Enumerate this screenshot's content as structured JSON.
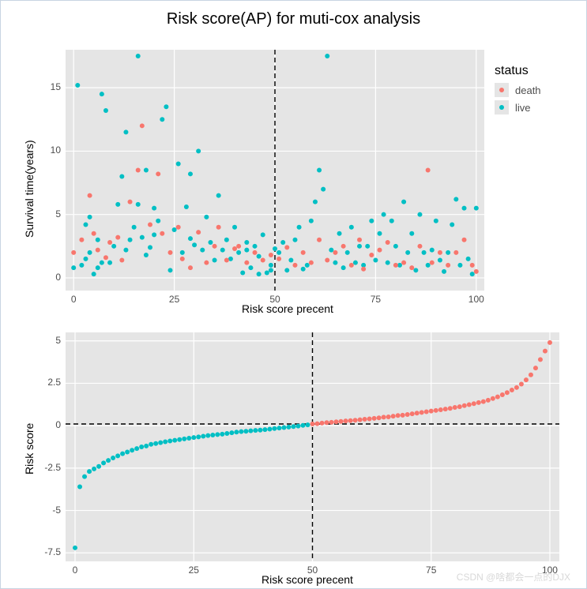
{
  "title": "Risk score(AP) for muti-cox analysis",
  "watermark": "CSDN @啥都会一点的DJX",
  "colors": {
    "death": "#f8766d",
    "live": "#00bfc4",
    "panel_bg": "#e5e5e5",
    "grid_major": "#ffffff",
    "axis_text": "#4d4d4d",
    "vline": "#000000"
  },
  "legend": {
    "title": "status",
    "items": [
      {
        "key": "death",
        "label": "death",
        "color": "#f8766d"
      },
      {
        "key": "live",
        "label": "live",
        "color": "#00bfc4"
      }
    ]
  },
  "chart_top": {
    "type": "scatter",
    "xlabel": "Risk score precent",
    "ylabel": "Survival time(years)",
    "xlim": [
      -2,
      102
    ],
    "ylim": [
      -1,
      18
    ],
    "xticks": [
      0,
      25,
      50,
      75,
      100
    ],
    "yticks": [
      0,
      5,
      10,
      15
    ],
    "vline_x": 50,
    "point_radius": 3,
    "label_fontsize": 14,
    "tick_fontsize": 12,
    "points_live": [
      [
        0,
        0.8
      ],
      [
        1,
        15.2
      ],
      [
        2,
        1.0
      ],
      [
        3,
        4.2
      ],
      [
        3,
        1.5
      ],
      [
        4,
        2.0
      ],
      [
        4,
        4.8
      ],
      [
        5,
        0.3
      ],
      [
        6,
        0.8
      ],
      [
        6,
        3.0
      ],
      [
        7,
        14.5
      ],
      [
        7,
        1.2
      ],
      [
        8,
        13.2
      ],
      [
        9,
        1.2
      ],
      [
        10,
        2.5
      ],
      [
        11,
        5.8
      ],
      [
        12,
        8.0
      ],
      [
        13,
        11.5
      ],
      [
        13,
        2.2
      ],
      [
        14,
        3.0
      ],
      [
        15,
        4.0
      ],
      [
        16,
        17.5
      ],
      [
        16,
        5.8
      ],
      [
        17,
        3.2
      ],
      [
        18,
        8.5
      ],
      [
        18,
        1.8
      ],
      [
        19,
        2.4
      ],
      [
        20,
        5.5
      ],
      [
        20,
        3.4
      ],
      [
        21,
        4.5
      ],
      [
        22,
        12.5
      ],
      [
        23,
        13.5
      ],
      [
        24,
        0.6
      ],
      [
        25,
        3.8
      ],
      [
        26,
        9.0
      ],
      [
        27,
        2.0
      ],
      [
        28,
        5.6
      ],
      [
        29,
        8.2
      ],
      [
        29,
        3.1
      ],
      [
        30,
        2.6
      ],
      [
        31,
        10.0
      ],
      [
        32,
        2.2
      ],
      [
        33,
        4.8
      ],
      [
        34,
        2.8
      ],
      [
        35,
        1.4
      ],
      [
        36,
        6.5
      ],
      [
        37,
        2.2
      ],
      [
        38,
        3.0
      ],
      [
        39,
        1.5
      ],
      [
        40,
        4.0
      ],
      [
        41,
        2.0
      ],
      [
        42,
        0.4
      ],
      [
        43,
        2.8
      ],
      [
        43,
        2.2
      ],
      [
        44,
        0.8
      ],
      [
        45,
        2.5
      ],
      [
        46,
        0.3
      ],
      [
        46,
        1.7
      ],
      [
        47,
        3.4
      ],
      [
        48,
        0.4
      ],
      [
        49,
        1.0
      ],
      [
        49,
        0.6
      ],
      [
        50,
        2.3
      ],
      [
        51,
        2.0
      ],
      [
        52,
        2.8
      ],
      [
        53,
        0.6
      ],
      [
        54,
        1.4
      ],
      [
        55,
        3.0
      ],
      [
        56,
        4.0
      ],
      [
        57,
        0.7
      ],
      [
        58,
        1.0
      ],
      [
        59,
        4.5
      ],
      [
        60,
        6.0
      ],
      [
        61,
        8.5
      ],
      [
        62,
        7.0
      ],
      [
        63,
        17.5
      ],
      [
        64,
        2.2
      ],
      [
        65,
        1.2
      ],
      [
        66,
        3.5
      ],
      [
        67,
        0.8
      ],
      [
        68,
        2.0
      ],
      [
        69,
        4.0
      ],
      [
        70,
        1.2
      ],
      [
        71,
        2.5
      ],
      [
        72,
        1.0
      ],
      [
        73,
        2.5
      ],
      [
        74,
        4.5
      ],
      [
        75,
        1.4
      ],
      [
        76,
        3.5
      ],
      [
        77,
        5.0
      ],
      [
        78,
        1.2
      ],
      [
        79,
        4.5
      ],
      [
        80,
        2.5
      ],
      [
        81,
        1.0
      ],
      [
        82,
        6.0
      ],
      [
        83,
        2.0
      ],
      [
        84,
        3.5
      ],
      [
        85,
        0.6
      ],
      [
        86,
        5.0
      ],
      [
        87,
        2.0
      ],
      [
        88,
        1.0
      ],
      [
        89,
        2.2
      ],
      [
        90,
        4.5
      ],
      [
        91,
        1.4
      ],
      [
        92,
        0.5
      ],
      [
        93,
        2.0
      ],
      [
        94,
        4.2
      ],
      [
        95,
        6.2
      ],
      [
        96,
        1.0
      ],
      [
        97,
        5.5
      ],
      [
        98,
        1.5
      ],
      [
        99,
        0.3
      ],
      [
        100,
        5.5
      ]
    ],
    "points_death": [
      [
        0,
        2.0
      ],
      [
        2,
        3.0
      ],
      [
        4,
        6.5
      ],
      [
        5,
        3.5
      ],
      [
        6,
        2.2
      ],
      [
        8,
        1.6
      ],
      [
        9,
        2.8
      ],
      [
        11,
        3.2
      ],
      [
        12,
        1.4
      ],
      [
        14,
        6.0
      ],
      [
        16,
        8.5
      ],
      [
        17,
        12.0
      ],
      [
        19,
        4.2
      ],
      [
        21,
        8.2
      ],
      [
        22,
        3.5
      ],
      [
        24,
        2.0
      ],
      [
        26,
        4.0
      ],
      [
        27,
        1.5
      ],
      [
        29,
        0.8
      ],
      [
        31,
        3.6
      ],
      [
        33,
        1.2
      ],
      [
        35,
        2.5
      ],
      [
        36,
        4.0
      ],
      [
        38,
        1.4
      ],
      [
        40,
        2.3
      ],
      [
        41,
        2.5
      ],
      [
        43,
        1.2
      ],
      [
        45,
        2.0
      ],
      [
        47,
        1.4
      ],
      [
        49,
        1.8
      ],
      [
        51,
        1.5
      ],
      [
        53,
        2.4
      ],
      [
        55,
        1.0
      ],
      [
        57,
        2.0
      ],
      [
        59,
        1.2
      ],
      [
        61,
        3.0
      ],
      [
        63,
        1.4
      ],
      [
        65,
        2.0
      ],
      [
        67,
        2.5
      ],
      [
        69,
        1.0
      ],
      [
        71,
        3.0
      ],
      [
        72,
        0.7
      ],
      [
        74,
        1.8
      ],
      [
        76,
        2.2
      ],
      [
        78,
        2.8
      ],
      [
        80,
        1.0
      ],
      [
        82,
        1.2
      ],
      [
        84,
        0.8
      ],
      [
        86,
        2.5
      ],
      [
        88,
        8.5
      ],
      [
        89,
        1.2
      ],
      [
        91,
        2.0
      ],
      [
        93,
        1.0
      ],
      [
        95,
        2.0
      ],
      [
        97,
        3.0
      ],
      [
        99,
        1.0
      ],
      [
        100,
        0.5
      ]
    ]
  },
  "chart_bot": {
    "type": "scatter",
    "xlabel": "Risk score precent",
    "ylabel": "Risk score",
    "xlim": [
      -2,
      102
    ],
    "ylim": [
      -8,
      5.5
    ],
    "xticks": [
      0,
      25,
      50,
      75,
      100
    ],
    "yticks": [
      -7.5,
      -5.0,
      -2.5,
      0.0,
      2.5,
      5.0
    ],
    "vline_x": 50,
    "hline_y": 0.1,
    "point_radius": 3,
    "label_fontsize": 14,
    "tick_fontsize": 12,
    "risk_x": [
      0,
      1,
      2,
      3,
      4,
      5,
      6,
      7,
      8,
      9,
      10,
      11,
      12,
      13,
      14,
      15,
      16,
      17,
      18,
      19,
      20,
      21,
      22,
      23,
      24,
      25,
      26,
      27,
      28,
      29,
      30,
      31,
      32,
      33,
      34,
      35,
      36,
      37,
      38,
      39,
      40,
      41,
      42,
      43,
      44,
      45,
      46,
      47,
      48,
      49,
      50,
      51,
      52,
      53,
      54,
      55,
      56,
      57,
      58,
      59,
      60,
      61,
      62,
      63,
      64,
      65,
      66,
      67,
      68,
      69,
      70,
      71,
      72,
      73,
      74,
      75,
      76,
      77,
      78,
      79,
      80,
      81,
      82,
      83,
      84,
      85,
      86,
      87,
      88,
      89,
      90,
      91,
      92,
      93,
      94,
      95,
      96,
      97,
      98,
      99,
      100
    ],
    "risk_y": [
      -7.2,
      -3.6,
      -3.0,
      -2.7,
      -2.55,
      -2.4,
      -2.2,
      -2.05,
      -1.9,
      -1.78,
      -1.65,
      -1.55,
      -1.45,
      -1.35,
      -1.25,
      -1.2,
      -1.1,
      -1.05,
      -1.0,
      -0.95,
      -0.9,
      -0.86,
      -0.82,
      -0.78,
      -0.74,
      -0.7,
      -0.66,
      -0.62,
      -0.58,
      -0.55,
      -0.52,
      -0.5,
      -0.46,
      -0.42,
      -0.38,
      -0.35,
      -0.33,
      -0.3,
      -0.28,
      -0.26,
      -0.23,
      -0.2,
      -0.17,
      -0.14,
      -0.11,
      -0.08,
      -0.05,
      -0.02,
      0.02,
      0.05,
      0.1,
      0.12,
      0.15,
      0.18,
      0.2,
      0.23,
      0.25,
      0.28,
      0.3,
      0.32,
      0.35,
      0.38,
      0.4,
      0.43,
      0.46,
      0.5,
      0.52,
      0.56,
      0.6,
      0.62,
      0.66,
      0.7,
      0.74,
      0.78,
      0.82,
      0.86,
      0.9,
      0.94,
      0.98,
      1.02,
      1.08,
      1.12,
      1.18,
      1.24,
      1.3,
      1.36,
      1.42,
      1.5,
      1.6,
      1.7,
      1.82,
      1.95,
      2.1,
      2.25,
      2.45,
      2.7,
      3.0,
      3.4,
      3.9,
      4.4,
      4.9
    ],
    "cutoff_idx": 50
  }
}
